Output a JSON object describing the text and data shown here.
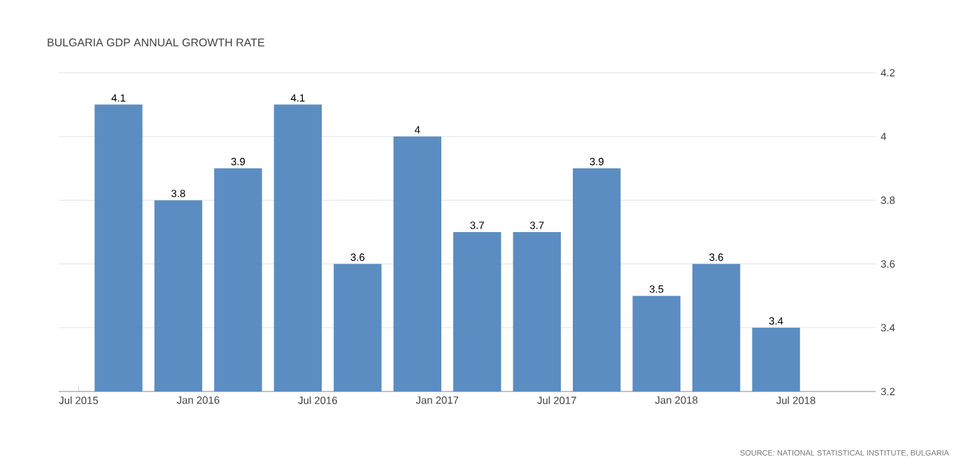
{
  "chart_data": {
    "type": "bar",
    "title": "BULGARIA GDP ANNUAL GROWTH RATE",
    "x": [
      "2015-09",
      "2015-12",
      "2016-03",
      "2016-06",
      "2016-09",
      "2016-12",
      "2017-03",
      "2017-06",
      "2017-09",
      "2017-12",
      "2018-03",
      "2018-06"
    ],
    "values": [
      4.1,
      3.8,
      3.9,
      4.1,
      3.6,
      4,
      3.7,
      3.7,
      3.9,
      3.5,
      3.6,
      3.4
    ],
    "color": "#5b8dc2",
    "xlim": [
      "2015-06",
      "2018-11"
    ],
    "xticks": [
      {
        "value": "2015-07",
        "label": "Jul 2015"
      },
      {
        "value": "2016-01",
        "label": "Jan 2016"
      },
      {
        "value": "2016-07",
        "label": "Jul 2016"
      },
      {
        "value": "2017-01",
        "label": "Jan 2017"
      },
      {
        "value": "2017-07",
        "label": "Jul 2017"
      },
      {
        "value": "2018-01",
        "label": "Jan 2018"
      },
      {
        "value": "2018-07",
        "label": "Jul 2018"
      }
    ],
    "ylim": [
      3.2,
      4.2
    ],
    "yticks": [
      3.2,
      3.4,
      3.6,
      3.8,
      4,
      4.2
    ],
    "grid": "y",
    "data_labels": true,
    "annotations": [
      "SOURCE: NATIONAL STATISTICAL INSTITUTE, BULGARIA"
    ]
  }
}
